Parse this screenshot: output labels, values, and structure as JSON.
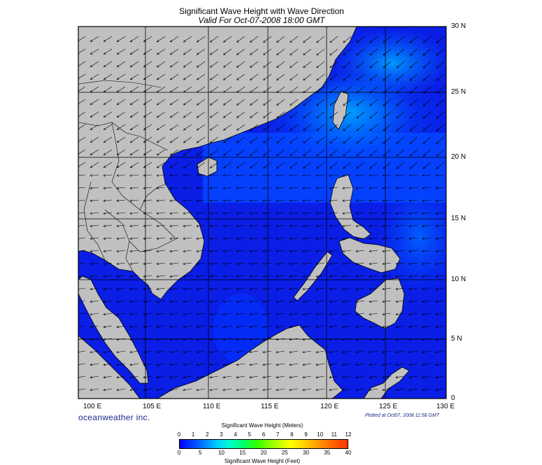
{
  "title": "Significant Wave Height with Wave Direction",
  "subtitle": "Valid For Oct-07-2008 18:00 GMT",
  "lat_labels": [
    "30 N",
    "25 N",
    "20 N",
    "15 N",
    "10 N",
    "5 N",
    "0"
  ],
  "lon_labels": [
    "100 E",
    "105 E",
    "110 E",
    "115 E",
    "120 E",
    "125 E",
    "130 E"
  ],
  "brand": "oceanweather inc.",
  "plotted": "Plotted at Oct07, 2008 11:58 GMT",
  "colorbar": {
    "meters_title": "Significant Wave Height (Meters)",
    "feet_title": "Significant Wave Height (Feet)",
    "meters_ticks": [
      "0",
      "1",
      "2",
      "3",
      "4",
      "5",
      "6",
      "7",
      "8",
      "9",
      "10",
      "11",
      "12"
    ],
    "feet_ticks": [
      "0",
      "5",
      "10",
      "15",
      "20",
      "25",
      "30",
      "35",
      "40"
    ]
  },
  "colors": {
    "land": "#c0c0c0",
    "ocean_low": "#0000ff",
    "ocean_mid": "#0044ff",
    "ocean_high": "#0099ff",
    "grid": "#000000"
  }
}
